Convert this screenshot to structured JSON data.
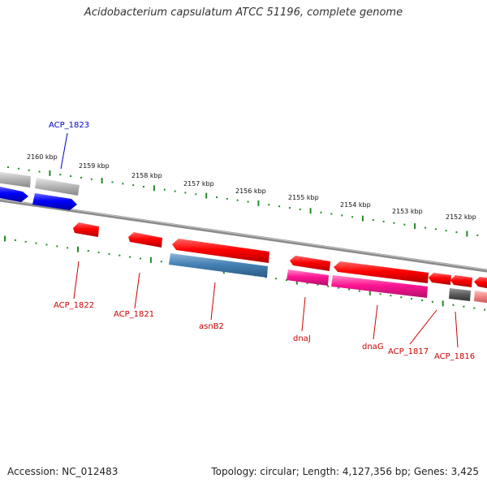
{
  "title": "Acidobacterium capsulatum ATCC 51196, complete genome",
  "footer": {
    "accession": "Accession: NC_012483",
    "summary": "Topology: circular; Length: 4,127,356 bp; Genes: 3,425"
  },
  "ruler": {
    "labels": [
      "2160 kbp",
      "2159 kbp",
      "2158 kbp",
      "2157 kbp",
      "2156 kbp",
      "2155 kbp",
      "2154 kbp",
      "2153 kbp",
      "2152 kbp"
    ]
  },
  "genes": {
    "acp1823": "ACP_1823",
    "acp1822": "ACP_1822",
    "acp1821": "ACP_1821",
    "asnB2": "asnB2",
    "dnaJ": "dnaJ",
    "dnaG": "dnaG",
    "acp1817": "ACP_1817",
    "acp1816": "ACP_1816"
  },
  "colors": {
    "backbone": "#808080",
    "ticks": "#228b22",
    "forward_cds": "#0000ff",
    "reverse_cds": "#ff0000",
    "rna": "#ff1493",
    "pseudo": "#4682b4",
    "grey_feature": "#b0b0b0",
    "label_blue": "#0000cc",
    "label_red": "#cc0000"
  }
}
